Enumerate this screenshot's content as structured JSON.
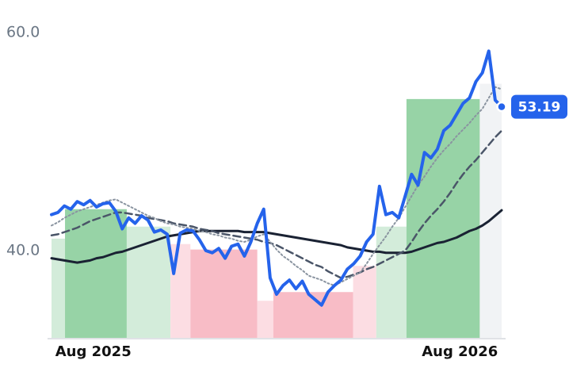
{
  "chart_data": {
    "type": "line",
    "x": [
      0,
      1,
      2,
      3,
      4,
      5,
      6,
      7,
      8,
      9,
      10,
      11,
      12,
      13,
      14,
      15,
      16,
      17,
      18,
      19,
      20,
      21,
      22,
      23,
      24,
      25,
      26,
      27,
      28,
      29,
      30,
      31,
      32,
      33,
      34,
      35,
      36,
      37,
      38,
      39,
      40,
      41,
      42,
      43,
      44,
      45,
      46,
      47,
      48,
      49,
      50,
      51,
      52,
      53,
      54,
      55,
      56,
      57,
      58,
      59,
      60,
      61,
      62,
      63,
      64,
      65,
      66,
      67,
      68,
      69,
      70
    ],
    "xlim": [
      0,
      70
    ],
    "xticks": [
      {
        "value": 6.5,
        "label": "Aug 2025"
      },
      {
        "value": 63.5,
        "label": "Aug 2026"
      }
    ],
    "ylim": [
      32,
      60
    ],
    "yticks": [
      {
        "value": 40,
        "label": "40.0"
      },
      {
        "value": 60,
        "label": "60.0"
      }
    ],
    "bands": [
      {
        "x0": 0,
        "x1": 2.1,
        "value": 41.1,
        "color": "#d3ecda"
      },
      {
        "x0": 2.1,
        "x1": 11.7,
        "value": 43.8,
        "color": "#97d3a6"
      },
      {
        "x0": 11.7,
        "x1": 18.5,
        "value": 42.2,
        "color": "#d3ecda"
      },
      {
        "x0": 18.5,
        "x1": 21.6,
        "value": 40.6,
        "color": "#fcdde3"
      },
      {
        "x0": 21.6,
        "x1": 32,
        "value": 40.1,
        "color": "#f8bcc6"
      },
      {
        "x0": 32,
        "x1": 34.5,
        "value": 35.4,
        "color": "#fcdde3"
      },
      {
        "x0": 34.5,
        "x1": 46.9,
        "value": 36.2,
        "color": "#f8bcc6"
      },
      {
        "x0": 46.9,
        "x1": 50.5,
        "value": 38.6,
        "color": "#fcdde3"
      },
      {
        "x0": 50.5,
        "x1": 55.2,
        "value": 42.2,
        "color": "#d3ecda"
      },
      {
        "x0": 55.2,
        "x1": 66.6,
        "value": 53.9,
        "color": "#97d3a6"
      },
      {
        "x0": 66.6,
        "x1": 70,
        "value": 55.3,
        "color": "#f1f3f5"
      }
    ],
    "series": [
      {
        "color": "#1a2233",
        "style": "solid",
        "width": 3,
        "values": [
          39.3,
          39.2,
          39.1,
          39.0,
          38.9,
          39.0,
          39.1,
          39.3,
          39.4,
          39.6,
          39.8,
          39.9,
          40.1,
          40.3,
          40.5,
          40.7,
          40.9,
          41.1,
          41.3,
          41.4,
          41.5,
          41.6,
          41.7,
          41.8,
          41.8,
          41.8,
          41.8,
          41.8,
          41.8,
          41.8,
          41.7,
          41.7,
          41.7,
          41.7,
          41.6,
          41.5,
          41.4,
          41.3,
          41.2,
          41.1,
          41.0,
          40.9,
          40.8,
          40.7,
          40.6,
          40.5,
          40.3,
          40.2,
          40.1,
          40.0,
          39.9,
          39.9,
          39.8,
          39.8,
          39.8,
          39.8,
          39.9,
          40.1,
          40.3,
          40.5,
          40.7,
          40.8,
          41.0,
          41.2,
          41.5,
          41.8,
          42.0,
          42.3,
          42.7,
          43.2,
          43.7
        ]
      },
      {
        "color": "#4a5568",
        "style": "dashed",
        "width": 2.5,
        "values": [
          41.4,
          41.5,
          41.7,
          41.9,
          42.1,
          42.4,
          42.7,
          42.9,
          43.1,
          43.3,
          43.5,
          43.5,
          43.4,
          43.3,
          43.2,
          43.0,
          42.9,
          42.8,
          42.7,
          42.5,
          42.4,
          42.3,
          42.2,
          42.0,
          41.9,
          41.8,
          41.6,
          41.5,
          41.4,
          41.3,
          41.2,
          41.1,
          41.0,
          40.8,
          40.7,
          40.5,
          40.2,
          39.9,
          39.6,
          39.3,
          39.0,
          38.7,
          38.5,
          38.1,
          37.8,
          37.5,
          37.6,
          37.8,
          38.0,
          38.3,
          38.5,
          38.8,
          39.1,
          39.4,
          39.7,
          40.0,
          40.8,
          41.7,
          42.5,
          43.2,
          43.8,
          44.5,
          45.3,
          46.2,
          47.0,
          47.7,
          48.3,
          49.0,
          49.7,
          50.4,
          51.0
        ]
      },
      {
        "color": "#8a94a0",
        "style": "dotted",
        "width": 2,
        "values": [
          42.3,
          42.6,
          43.0,
          43.3,
          43.6,
          43.8,
          44.0,
          44.2,
          44.4,
          44.6,
          44.7,
          44.4,
          44.1,
          43.8,
          43.5,
          43.2,
          43.0,
          42.7,
          42.5,
          42.4,
          42.2,
          42.1,
          42.0,
          41.8,
          41.7,
          41.5,
          41.4,
          41.2,
          41.1,
          40.9,
          40.8,
          41.0,
          41.3,
          41.5,
          40.8,
          40.1,
          39.5,
          39.1,
          38.6,
          38.2,
          37.7,
          37.5,
          37.3,
          37.0,
          36.8,
          37.1,
          37.4,
          37.7,
          38.0,
          38.8,
          39.7,
          40.5,
          41.3,
          42.2,
          43.0,
          44.0,
          45.0,
          46.0,
          46.8,
          47.7,
          48.5,
          49.2,
          49.8,
          50.5,
          51.1,
          51.7,
          52.4,
          53.0,
          54.0,
          55.0,
          54.8
        ]
      },
      {
        "color": "#2563eb",
        "style": "solid",
        "width": 4,
        "values": [
          43.3,
          43.5,
          44.1,
          43.8,
          44.5,
          44.2,
          44.6,
          44.0,
          44.3,
          44.4,
          43.6,
          42.0,
          43.0,
          42.5,
          43.2,
          42.8,
          41.7,
          41.9,
          41.5,
          37.9,
          41.6,
          41.9,
          41.8,
          41.0,
          40.0,
          39.8,
          40.2,
          39.3,
          40.4,
          40.6,
          39.5,
          40.8,
          42.5,
          43.8,
          37.5,
          36.0,
          36.8,
          37.3,
          36.5,
          37.2,
          36.0,
          35.5,
          35.0,
          36.2,
          36.8,
          37.3,
          38.3,
          38.8,
          39.5,
          40.8,
          41.5,
          45.9,
          43.3,
          43.5,
          43.0,
          45.0,
          47.0,
          46.0,
          49.0,
          48.5,
          49.3,
          51.0,
          51.5,
          52.5,
          53.5,
          54.0,
          55.5,
          56.3,
          58.3,
          53.8,
          53.19
        ]
      }
    ]
  }
}
